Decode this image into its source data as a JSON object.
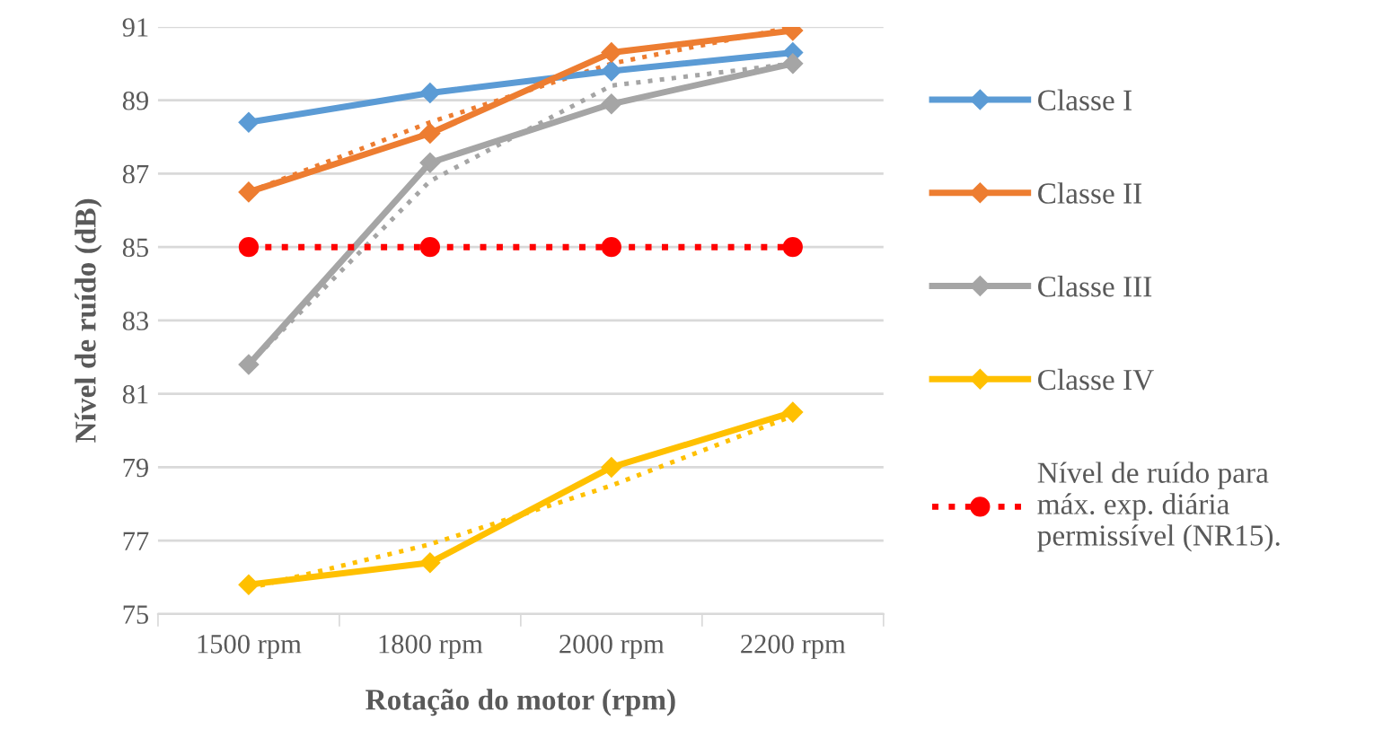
{
  "chart_data": {
    "type": "line",
    "xlabel": "Rotação do motor (rpm)",
    "ylabel": "Nível de ruído (dB)",
    "categories": [
      "1500 rpm",
      "1800 rpm",
      "2000 rpm",
      "2200 rpm"
    ],
    "ylim": [
      75,
      91
    ],
    "yticks": [
      75,
      77,
      79,
      81,
      83,
      85,
      87,
      89,
      91
    ],
    "grid": "y",
    "legend": "right",
    "marker": "diamond",
    "line_style": "solid",
    "series": [
      {
        "name": "Classe I",
        "color": "#5b9bd5",
        "values": [
          88.4,
          89.2,
          89.8,
          90.3
        ]
      },
      {
        "name": "Classe II",
        "color": "#ed7d31",
        "values": [
          86.5,
          88.1,
          90.3,
          90.9
        ]
      },
      {
        "name": "Classe III",
        "color": "#a5a5a5",
        "values": [
          81.8,
          87.3,
          88.9,
          90.0
        ]
      },
      {
        "name": "Classe IV",
        "color": "#ffc000",
        "values": [
          75.8,
          76.4,
          79.0,
          80.5
        ]
      },
      {
        "name": "Nível de ruído para máx. exp. diária permissível (NR15).",
        "color": "#ff0000",
        "values": [
          85,
          85,
          85,
          85
        ],
        "marker": "circle",
        "line_style": "dotted"
      },
      {
        "color": "#ed7d31",
        "values": [
          86.5,
          88.4,
          90.0,
          91.0
        ],
        "marker": "none",
        "line_style": "dotted"
      },
      {
        "color": "#a5a5a5",
        "values": [
          81.8,
          86.8,
          89.4,
          90.0
        ],
        "marker": "none",
        "line_style": "dotted"
      },
      {
        "color": "#ffc000",
        "values": [
          75.7,
          76.9,
          78.5,
          80.4
        ],
        "marker": "none",
        "line_style": "dotted"
      }
    ]
  }
}
